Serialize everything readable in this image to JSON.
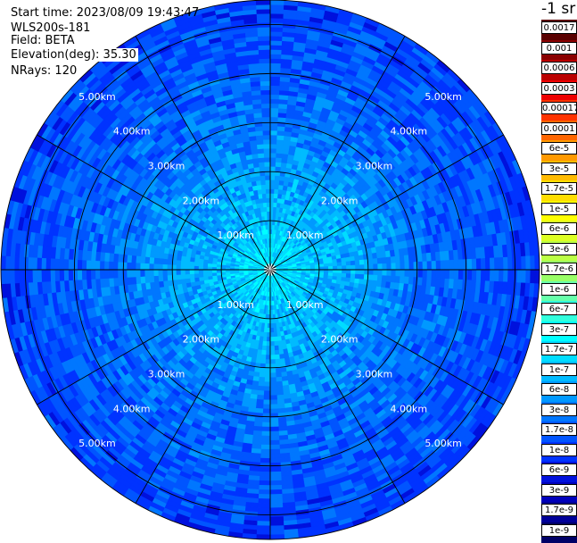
{
  "info": {
    "start_time": "Start time: 2023/08/09 19:43:47",
    "instrument": "WLS200s-181",
    "field": "Field: BETA",
    "elevation": "Elevation(deg): 35.30",
    "nrays": "NRays: 120"
  },
  "colorbar": {
    "unit_label": "-1 sr",
    "labels": [
      "0.0017",
      "0.001",
      "0.0006",
      "0.0003",
      "0.00017",
      "0.0001",
      "6e-5",
      "3e-5",
      "1.7e-5",
      "1e-5",
      "6e-6",
      "3e-6",
      "1.7e-6",
      "1e-6",
      "6e-7",
      "3e-7",
      "1.7e-7",
      "1e-7",
      "6e-8",
      "3e-8",
      "1.7e-8",
      "1e-8",
      "6e-9",
      "3e-9",
      "1.7e-9",
      "1e-9"
    ],
    "colors": [
      "#5a0000",
      "#8a0000",
      "#bb0000",
      "#ee0000",
      "#ff3300",
      "#ff6600",
      "#ff9900",
      "#ffbb00",
      "#ffdd00",
      "#ffff00",
      "#ddff22",
      "#bbff44",
      "#99ff66",
      "#66ffaa",
      "#33ffdd",
      "#00ffff",
      "#00ddff",
      "#00bbff",
      "#0099ff",
      "#0077ff",
      "#0055ff",
      "#0033ff",
      "#0011dd",
      "#0000bb",
      "#000099",
      "#000066"
    ]
  },
  "chart_data": {
    "type": "heatmap",
    "projection": "polar-ppi",
    "range_unit": "km",
    "max_range_km": 5.5,
    "range_rings_km": [
      1,
      2,
      3,
      4,
      5
    ],
    "ring_labels": [
      "1.00km",
      "2.00km",
      "3.00km",
      "4.00km",
      "5.00km"
    ],
    "n_rays": 120,
    "spoke_interval_deg": 30,
    "value_scale": "log",
    "value_range": [
      1e-09,
      0.0017
    ],
    "radial_profile": [
      {
        "range_km": 0.0,
        "beta": 2e-07
      },
      {
        "range_km": 0.5,
        "beta": 1.7e-07
      },
      {
        "range_km": 1.0,
        "beta": 1e-07
      },
      {
        "range_km": 2.0,
        "beta": 6e-08
      },
      {
        "range_km": 3.0,
        "beta": 3e-08
      },
      {
        "range_km": 4.0,
        "beta": 2e-08
      },
      {
        "range_km": 5.0,
        "beta": 1.5e-08
      },
      {
        "range_km": 5.5,
        "beta": 1.2e-08
      }
    ]
  }
}
